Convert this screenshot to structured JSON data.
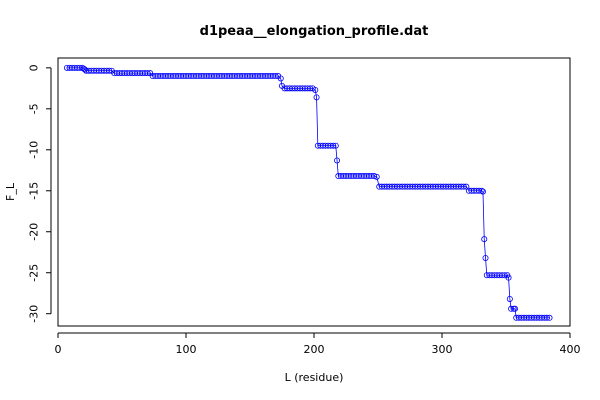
{
  "chart_data": {
    "type": "line",
    "title": "d1peaa__elongation_profile.dat",
    "xlabel": "L (residue)",
    "ylabel": "F_L",
    "xlim": [
      0,
      400
    ],
    "ylim": [
      -31.5,
      1.2
    ],
    "x_ticks": [
      0,
      100,
      200,
      300,
      400
    ],
    "y_ticks": [
      0,
      -5,
      -10,
      -15,
      -20,
      -25,
      -30
    ],
    "line_color": "#0000ff",
    "marker": "open-circle",
    "grid": false,
    "legend": "none",
    "series": [
      {
        "points": [
          [
            7,
            0
          ],
          [
            9,
            0
          ],
          [
            11,
            0
          ],
          [
            13,
            0
          ],
          [
            15,
            0
          ],
          [
            17,
            0
          ],
          [
            19,
            0
          ],
          [
            20,
            -0.1
          ],
          [
            21,
            -0.2
          ],
          [
            22,
            -0.35
          ],
          [
            24,
            -0.35
          ],
          [
            26,
            -0.35
          ],
          [
            28,
            -0.35
          ],
          [
            30,
            -0.35
          ],
          [
            32,
            -0.35
          ],
          [
            34,
            -0.35
          ],
          [
            36,
            -0.35
          ],
          [
            38,
            -0.35
          ],
          [
            40,
            -0.35
          ],
          [
            42,
            -0.35
          ],
          [
            44,
            -0.65
          ],
          [
            46,
            -0.65
          ],
          [
            48,
            -0.65
          ],
          [
            50,
            -0.65
          ],
          [
            52,
            -0.65
          ],
          [
            54,
            -0.65
          ],
          [
            56,
            -0.65
          ],
          [
            58,
            -0.65
          ],
          [
            60,
            -0.65
          ],
          [
            62,
            -0.65
          ],
          [
            64,
            -0.65
          ],
          [
            66,
            -0.65
          ],
          [
            68,
            -0.65
          ],
          [
            70,
            -0.65
          ],
          [
            72,
            -0.65
          ],
          [
            74,
            -1
          ],
          [
            76,
            -1
          ],
          [
            78,
            -1
          ],
          [
            80,
            -1
          ],
          [
            82,
            -1
          ],
          [
            84,
            -1
          ],
          [
            86,
            -1
          ],
          [
            88,
            -1
          ],
          [
            90,
            -1
          ],
          [
            92,
            -1
          ],
          [
            94,
            -1
          ],
          [
            96,
            -1
          ],
          [
            98,
            -1
          ],
          [
            100,
            -1
          ],
          [
            102,
            -1
          ],
          [
            104,
            -1
          ],
          [
            106,
            -1
          ],
          [
            108,
            -1
          ],
          [
            110,
            -1
          ],
          [
            112,
            -1
          ],
          [
            114,
            -1
          ],
          [
            116,
            -1
          ],
          [
            118,
            -1
          ],
          [
            120,
            -1
          ],
          [
            122,
            -1
          ],
          [
            124,
            -1
          ],
          [
            126,
            -1
          ],
          [
            128,
            -1
          ],
          [
            130,
            -1
          ],
          [
            132,
            -1
          ],
          [
            134,
            -1
          ],
          [
            136,
            -1
          ],
          [
            138,
            -1
          ],
          [
            140,
            -1
          ],
          [
            142,
            -1
          ],
          [
            144,
            -1
          ],
          [
            146,
            -1
          ],
          [
            148,
            -1
          ],
          [
            150,
            -1
          ],
          [
            152,
            -1
          ],
          [
            154,
            -1
          ],
          [
            156,
            -1
          ],
          [
            158,
            -1
          ],
          [
            160,
            -1
          ],
          [
            162,
            -1
          ],
          [
            164,
            -1
          ],
          [
            166,
            -1
          ],
          [
            168,
            -1
          ],
          [
            170,
            -1
          ],
          [
            172,
            -1
          ],
          [
            174,
            -1.3
          ],
          [
            175,
            -2.2
          ],
          [
            177,
            -2.5
          ],
          [
            179,
            -2.5
          ],
          [
            181,
            -2.5
          ],
          [
            183,
            -2.5
          ],
          [
            185,
            -2.5
          ],
          [
            187,
            -2.5
          ],
          [
            189,
            -2.5
          ],
          [
            191,
            -2.5
          ],
          [
            193,
            -2.5
          ],
          [
            195,
            -2.5
          ],
          [
            197,
            -2.5
          ],
          [
            199,
            -2.5
          ],
          [
            201,
            -2.7
          ],
          [
            202,
            -3.6
          ],
          [
            203,
            -9.5
          ],
          [
            205,
            -9.5
          ],
          [
            207,
            -9.5
          ],
          [
            209,
            -9.5
          ],
          [
            211,
            -9.5
          ],
          [
            213,
            -9.5
          ],
          [
            215,
            -9.5
          ],
          [
            217,
            -9.5
          ],
          [
            218,
            -11.3
          ],
          [
            219,
            -13.2
          ],
          [
            221,
            -13.2
          ],
          [
            223,
            -13.2
          ],
          [
            225,
            -13.2
          ],
          [
            227,
            -13.2
          ],
          [
            229,
            -13.2
          ],
          [
            231,
            -13.2
          ],
          [
            233,
            -13.2
          ],
          [
            235,
            -13.2
          ],
          [
            237,
            -13.2
          ],
          [
            239,
            -13.2
          ],
          [
            241,
            -13.2
          ],
          [
            243,
            -13.2
          ],
          [
            245,
            -13.2
          ],
          [
            247,
            -13.2
          ],
          [
            249,
            -13.3
          ],
          [
            251,
            -14.5
          ],
          [
            253,
            -14.5
          ],
          [
            255,
            -14.5
          ],
          [
            257,
            -14.5
          ],
          [
            259,
            -14.5
          ],
          [
            261,
            -14.5
          ],
          [
            263,
            -14.5
          ],
          [
            265,
            -14.5
          ],
          [
            267,
            -14.5
          ],
          [
            269,
            -14.5
          ],
          [
            271,
            -14.5
          ],
          [
            273,
            -14.5
          ],
          [
            275,
            -14.5
          ],
          [
            277,
            -14.5
          ],
          [
            279,
            -14.5
          ],
          [
            281,
            -14.5
          ],
          [
            283,
            -14.5
          ],
          [
            285,
            -14.5
          ],
          [
            287,
            -14.5
          ],
          [
            289,
            -14.5
          ],
          [
            291,
            -14.5
          ],
          [
            293,
            -14.5
          ],
          [
            295,
            -14.5
          ],
          [
            297,
            -14.5
          ],
          [
            299,
            -14.5
          ],
          [
            301,
            -14.5
          ],
          [
            303,
            -14.5
          ],
          [
            305,
            -14.5
          ],
          [
            307,
            -14.5
          ],
          [
            309,
            -14.5
          ],
          [
            311,
            -14.5
          ],
          [
            313,
            -14.5
          ],
          [
            315,
            -14.5
          ],
          [
            317,
            -14.5
          ],
          [
            319,
            -14.5
          ],
          [
            321,
            -15
          ],
          [
            323,
            -15
          ],
          [
            325,
            -15
          ],
          [
            327,
            -15
          ],
          [
            329,
            -15
          ],
          [
            331,
            -15
          ],
          [
            332,
            -15.1
          ],
          [
            333,
            -20.9
          ],
          [
            334,
            -23.2
          ],
          [
            335,
            -25.3
          ],
          [
            337,
            -25.3
          ],
          [
            339,
            -25.3
          ],
          [
            341,
            -25.3
          ],
          [
            343,
            -25.3
          ],
          [
            345,
            -25.3
          ],
          [
            347,
            -25.3
          ],
          [
            349,
            -25.3
          ],
          [
            351,
            -25.3
          ],
          [
            352,
            -25.6
          ],
          [
            353,
            -28.2
          ],
          [
            354,
            -29.4
          ],
          [
            356,
            -29.4
          ],
          [
            357,
            -29.4
          ],
          [
            358,
            -30.5
          ],
          [
            360,
            -30.5
          ],
          [
            362,
            -30.5
          ],
          [
            364,
            -30.5
          ],
          [
            366,
            -30.5
          ],
          [
            368,
            -30.5
          ],
          [
            370,
            -30.5
          ],
          [
            372,
            -30.5
          ],
          [
            374,
            -30.5
          ],
          [
            376,
            -30.5
          ],
          [
            378,
            -30.5
          ],
          [
            380,
            -30.5
          ],
          [
            382,
            -30.5
          ],
          [
            384,
            -30.5
          ]
        ]
      }
    ]
  }
}
